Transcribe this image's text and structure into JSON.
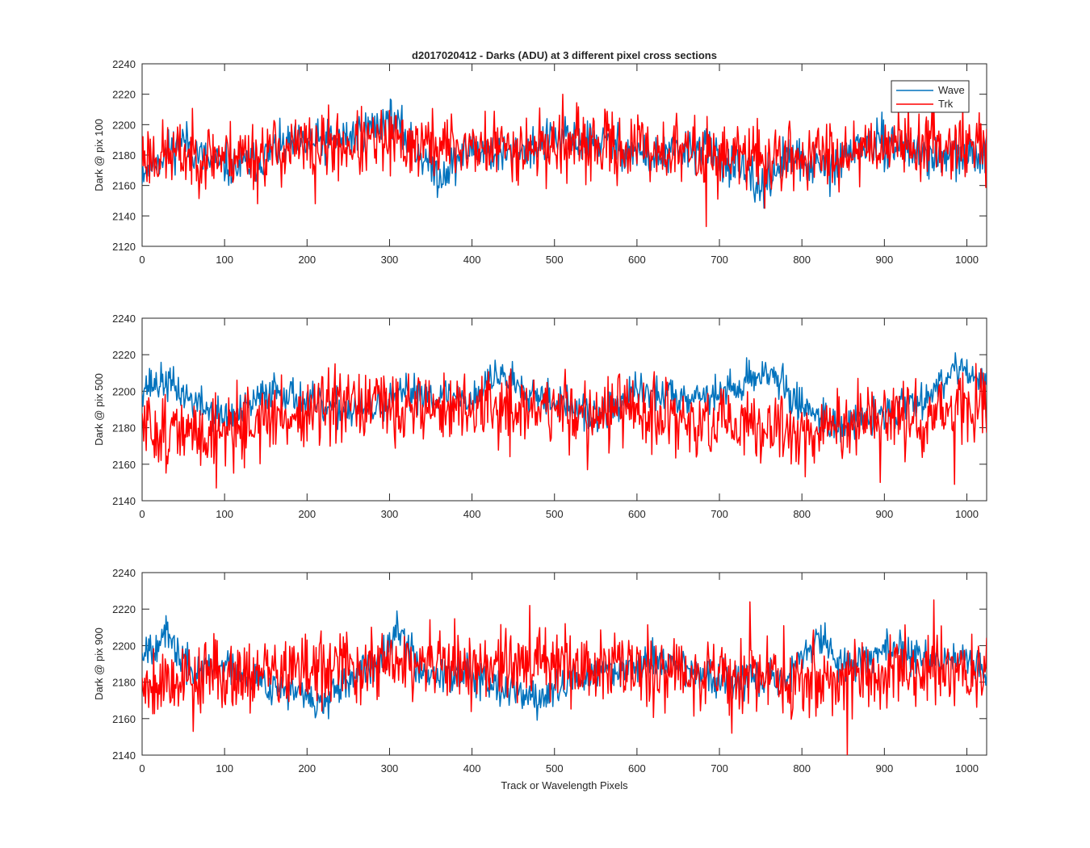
{
  "figure": {
    "title": "d2017020412 - Darks (ADU) at 3 different pixel cross sections",
    "xlabel": "Track or Wavelength Pixels",
    "legend": [
      "Wave",
      "Trk"
    ],
    "colors": {
      "Wave": "#0072BD",
      "Trk": "#FF0000",
      "axis": "#262626",
      "background": "#ffffff"
    }
  },
  "chart_data": [
    {
      "type": "line",
      "title": "d2017020412 - Darks (ADU) at 3 different pixel cross sections",
      "xlabel": "",
      "ylabel": "Dark @ pix 100",
      "xlim": [
        0,
        1024
      ],
      "ylim": [
        2120,
        2240
      ],
      "xticks": [
        0,
        100,
        200,
        300,
        400,
        500,
        600,
        700,
        800,
        900,
        1000
      ],
      "yticks": [
        2120,
        2140,
        2160,
        2180,
        2200,
        2220,
        2240
      ],
      "legend_position": "top-right",
      "grid": false,
      "series": [
        {
          "name": "Wave",
          "color": "#0072BD",
          "noise": 7,
          "seed": 11,
          "x": [
            0,
            20,
            50,
            80,
            120,
            170,
            240,
            280,
            300,
            320,
            360,
            400,
            440,
            500,
            560,
            620,
            680,
            720,
            750,
            780,
            840,
            860,
            900,
            950,
            1000,
            1023
          ],
          "values": [
            2170,
            2178,
            2190,
            2175,
            2172,
            2185,
            2190,
            2198,
            2204,
            2192,
            2166,
            2185,
            2180,
            2190,
            2188,
            2178,
            2185,
            2172,
            2158,
            2178,
            2170,
            2185,
            2188,
            2180,
            2178,
            2182
          ]
        },
        {
          "name": "Trk",
          "color": "#FF0000",
          "noise": 11,
          "seed": 23,
          "x": [
            0,
            100,
            200,
            300,
            400,
            500,
            600,
            700,
            800,
            900,
            1000,
            1023
          ],
          "values": [
            2180,
            2180,
            2185,
            2188,
            2185,
            2186,
            2185,
            2180,
            2178,
            2188,
            2188,
            2185
          ],
          "spikes": [
            [
              140,
              2148
            ],
            [
              210,
              2148
            ],
            [
              510,
              2220
            ],
            [
              684,
              2133
            ],
            [
              755,
              2145
            ]
          ]
        }
      ]
    },
    {
      "type": "line",
      "ylabel": "Dark @ pix 500",
      "xlim": [
        0,
        1024
      ],
      "ylim": [
        2140,
        2240
      ],
      "xticks": [
        0,
        100,
        200,
        300,
        400,
        500,
        600,
        700,
        800,
        900,
        1000
      ],
      "yticks": [
        2140,
        2160,
        2180,
        2200,
        2220,
        2240
      ],
      "grid": false,
      "series": [
        {
          "name": "Wave",
          "color": "#0072BD",
          "noise": 5,
          "seed": 37,
          "x": [
            0,
            30,
            60,
            100,
            120,
            160,
            220,
            280,
            330,
            400,
            430,
            500,
            550,
            600,
            650,
            700,
            760,
            790,
            850,
            900,
            960,
            990,
            1023
          ],
          "values": [
            2203,
            2205,
            2195,
            2185,
            2188,
            2202,
            2190,
            2190,
            2200,
            2195,
            2210,
            2195,
            2185,
            2200,
            2198,
            2198,
            2212,
            2195,
            2180,
            2188,
            2200,
            2216,
            2202
          ]
        },
        {
          "name": "Trk",
          "color": "#FF0000",
          "noise": 10,
          "seed": 51,
          "x": [
            0,
            60,
            100,
            200,
            300,
            400,
            500,
            600,
            700,
            800,
            900,
            1000,
            1023
          ],
          "values": [
            2180,
            2176,
            2180,
            2188,
            2192,
            2190,
            2190,
            2188,
            2180,
            2178,
            2184,
            2190,
            2188
          ],
          "spikes": [
            [
              90,
              2147
            ],
            [
              540,
              2157
            ],
            [
              895,
              2150
            ],
            [
              985,
              2149
            ]
          ]
        }
      ]
    },
    {
      "type": "line",
      "xlabel": "Track or Wavelength Pixels",
      "ylabel": "Dark @ pix 900",
      "xlim": [
        0,
        1024
      ],
      "ylim": [
        2140,
        2240
      ],
      "xticks": [
        0,
        100,
        200,
        300,
        400,
        500,
        600,
        700,
        800,
        900,
        1000
      ],
      "yticks": [
        2140,
        2160,
        2180,
        2200,
        2220,
        2240
      ],
      "grid": false,
      "series": [
        {
          "name": "Wave",
          "color": "#0072BD",
          "noise": 5,
          "seed": 67,
          "x": [
            0,
            30,
            60,
            100,
            160,
            220,
            280,
            310,
            340,
            400,
            480,
            530,
            600,
            640,
            700,
            780,
            820,
            850,
            900,
            960,
            1000,
            1023
          ],
          "values": [
            2198,
            2205,
            2185,
            2190,
            2178,
            2168,
            2190,
            2210,
            2185,
            2185,
            2170,
            2182,
            2190,
            2192,
            2180,
            2182,
            2205,
            2188,
            2198,
            2192,
            2192,
            2185
          ]
        },
        {
          "name": "Trk",
          "color": "#FF0000",
          "noise": 10,
          "seed": 79,
          "x": [
            0,
            100,
            200,
            300,
            400,
            500,
            600,
            700,
            800,
            900,
            1000,
            1023
          ],
          "values": [
            2180,
            2185,
            2186,
            2190,
            2188,
            2190,
            2188,
            2185,
            2182,
            2185,
            2188,
            2186
          ],
          "spikes": [
            [
              62,
              2153
            ],
            [
              470,
              2222
            ],
            [
              715,
              2152
            ],
            [
              737,
              2224
            ],
            [
              855,
              2140
            ],
            [
              960,
              2225
            ]
          ]
        }
      ]
    }
  ]
}
